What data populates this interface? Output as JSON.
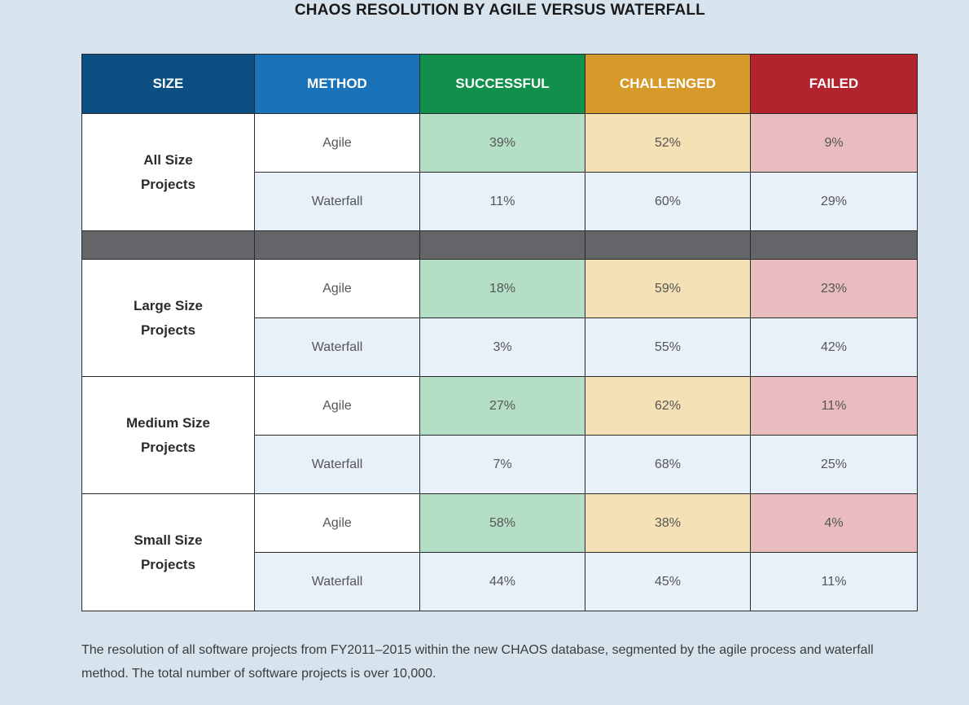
{
  "title": "CHAOS RESOLUTION BY AGILE VERSUS WATERFALL",
  "headers": {
    "size": "SIZE",
    "method": "METHOD",
    "successful": "SUCCESSFUL",
    "challenged": "CHALLENGED",
    "failed": "FAILED"
  },
  "colors": {
    "size_header": "#0c4f83",
    "method_header": "#1a72b8",
    "successful": "#10904a",
    "challenged": "#d79a2a",
    "failed": "#b3232e"
  },
  "groups": [
    {
      "size_line1": "All Size",
      "size_line2": "Projects",
      "rows": [
        {
          "method": "Agile",
          "successful": "39%",
          "challenged": "52%",
          "failed": "9%"
        },
        {
          "method": "Waterfall",
          "successful": "11%",
          "challenged": "60%",
          "failed": "29%"
        }
      ]
    },
    {
      "size_line1": "Large Size",
      "size_line2": "Projects",
      "rows": [
        {
          "method": "Agile",
          "successful": "18%",
          "challenged": "59%",
          "failed": "23%"
        },
        {
          "method": "Waterfall",
          "successful": "3%",
          "challenged": "55%",
          "failed": "42%"
        }
      ]
    },
    {
      "size_line1": "Medium Size",
      "size_line2": "Projects",
      "rows": [
        {
          "method": "Agile",
          "successful": "27%",
          "challenged": "62%",
          "failed": "11%"
        },
        {
          "method": "Waterfall",
          "successful": "7%",
          "challenged": "68%",
          "failed": "25%"
        }
      ]
    },
    {
      "size_line1": "Small Size",
      "size_line2": "Projects",
      "rows": [
        {
          "method": "Agile",
          "successful": "58%",
          "challenged": "38%",
          "failed": "4%"
        },
        {
          "method": "Waterfall",
          "successful": "44%",
          "challenged": "45%",
          "failed": "11%"
        }
      ]
    }
  ],
  "caption": "The resolution of all software projects from FY2011–2015 within the new CHAOS database, segmented by the agile process and waterfall method. The total number of software projects is over 10,000.",
  "chart_data": {
    "type": "table",
    "title": "CHAOS RESOLUTION BY AGILE VERSUS WATERFALL",
    "columns": [
      "SIZE",
      "METHOD",
      "SUCCESSFUL",
      "CHALLENGED",
      "FAILED"
    ],
    "rows": [
      [
        "All Size Projects",
        "Agile",
        39,
        52,
        9
      ],
      [
        "All Size Projects",
        "Waterfall",
        11,
        60,
        29
      ],
      [
        "Large Size Projects",
        "Agile",
        18,
        59,
        23
      ],
      [
        "Large Size Projects",
        "Waterfall",
        3,
        55,
        42
      ],
      [
        "Medium Size Projects",
        "Agile",
        27,
        62,
        11
      ],
      [
        "Medium Size Projects",
        "Waterfall",
        7,
        68,
        25
      ],
      [
        "Small Size Projects",
        "Agile",
        58,
        38,
        4
      ],
      [
        "Small Size Projects",
        "Waterfall",
        44,
        45,
        11
      ]
    ],
    "unit": "%"
  }
}
